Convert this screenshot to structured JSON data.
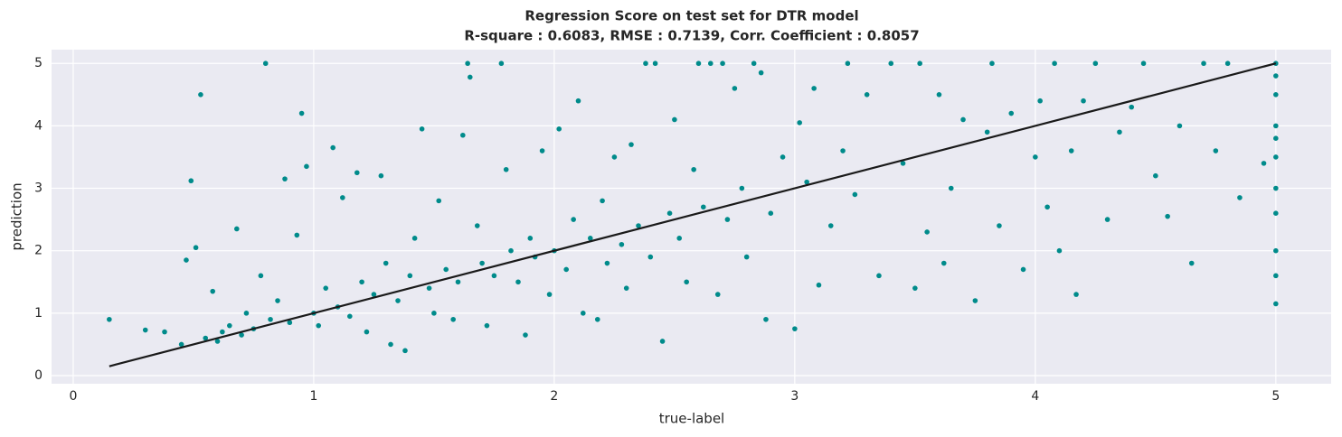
{
  "chart_data": {
    "type": "scatter",
    "title": "Regression Score on test set for DTR model",
    "subtitle": "R-square : 0.6083,   RMSE : 0.7139,   Corr. Coefficient : 0.8057",
    "xlabel": "true-label",
    "ylabel": "prediction",
    "xlim": [
      -0.09,
      5.23
    ],
    "ylim": [
      -0.13,
      5.22
    ],
    "xticks": [
      0,
      1,
      2,
      3,
      4,
      5
    ],
    "yticks": [
      0,
      1,
      2,
      3,
      4,
      5
    ],
    "grid": true,
    "points": {
      "color": "#008b8b",
      "x": [
        0.15,
        0.3,
        0.38,
        0.45,
        0.47,
        0.49,
        0.51,
        0.53,
        0.55,
        0.58,
        0.6,
        0.62,
        0.65,
        0.68,
        0.7,
        0.72,
        0.75,
        0.78,
        0.8,
        0.82,
        0.85,
        0.88,
        0.9,
        0.93,
        0.95,
        0.97,
        1.0,
        1.02,
        1.05,
        1.08,
        1.1,
        1.12,
        1.15,
        1.18,
        1.2,
        1.22,
        1.25,
        1.28,
        1.3,
        1.32,
        1.35,
        1.38,
        1.4,
        1.42,
        1.45,
        1.48,
        1.5,
        1.52,
        1.55,
        1.58,
        1.6,
        1.62,
        1.64,
        1.65,
        1.68,
        1.7,
        1.72,
        1.75,
        1.78,
        1.8,
        1.82,
        1.85,
        1.88,
        1.9,
        1.92,
        1.95,
        1.98,
        2.0,
        2.02,
        2.05,
        2.08,
        2.1,
        2.12,
        2.15,
        2.18,
        2.2,
        2.22,
        2.25,
        2.28,
        2.3,
        2.32,
        2.35,
        2.38,
        2.4,
        2.42,
        2.45,
        2.48,
        2.5,
        2.52,
        2.55,
        2.58,
        2.6,
        2.62,
        2.65,
        2.68,
        2.7,
        2.72,
        2.75,
        2.78,
        2.8,
        2.83,
        2.86,
        2.88,
        2.9,
        2.95,
        3.0,
        3.02,
        3.05,
        3.08,
        3.1,
        3.15,
        3.2,
        3.22,
        3.25,
        3.3,
        3.35,
        3.4,
        3.45,
        3.5,
        3.52,
        3.55,
        3.6,
        3.62,
        3.65,
        3.7,
        3.75,
        3.8,
        3.82,
        3.85,
        3.9,
        3.95,
        4.0,
        4.02,
        4.05,
        4.08,
        4.1,
        4.15,
        4.17,
        4.2,
        4.25,
        4.3,
        4.35,
        4.4,
        4.45,
        4.5,
        4.55,
        4.6,
        4.65,
        4.7,
        4.75,
        4.8,
        4.85,
        4.95,
        5.0,
        5.0,
        5.0,
        5.0,
        5.0,
        5.0,
        5.0,
        5.0,
        5.0,
        5.0,
        5.0
      ],
      "y": [
        0.9,
        0.73,
        0.7,
        0.5,
        1.85,
        3.12,
        2.05,
        4.5,
        0.6,
        1.35,
        0.55,
        0.7,
        0.8,
        2.35,
        0.65,
        1.0,
        0.75,
        1.6,
        5.0,
        0.9,
        1.2,
        3.15,
        0.85,
        2.25,
        4.2,
        3.35,
        1.0,
        0.8,
        1.4,
        3.65,
        1.1,
        2.85,
        0.95,
        3.25,
        1.5,
        0.7,
        1.3,
        3.2,
        1.8,
        0.5,
        1.2,
        0.4,
        1.6,
        2.2,
        3.95,
        1.4,
        1.0,
        2.8,
        1.7,
        0.9,
        1.5,
        3.85,
        5.0,
        4.78,
        2.4,
        1.8,
        0.8,
        1.6,
        5.0,
        3.3,
        2.0,
        1.5,
        0.65,
        2.2,
        1.9,
        3.6,
        1.3,
        2.0,
        3.95,
        1.7,
        2.5,
        4.4,
        1.0,
        2.2,
        0.9,
        2.8,
        1.8,
        3.5,
        2.1,
        1.4,
        3.7,
        2.4,
        5.0,
        1.9,
        5.0,
        0.55,
        2.6,
        4.1,
        2.2,
        1.5,
        3.3,
        5.0,
        2.7,
        5.0,
        1.3,
        5.0,
        2.5,
        4.6,
        3.0,
        1.9,
        5.0,
        4.85,
        0.9,
        2.6,
        3.5,
        0.75,
        4.05,
        3.1,
        4.6,
        1.45,
        2.4,
        3.6,
        5.0,
        2.9,
        4.5,
        1.6,
        5.0,
        3.4,
        1.4,
        5.0,
        2.3,
        4.5,
        1.8,
        3.0,
        4.1,
        1.2,
        3.9,
        5.0,
        2.4,
        4.2,
        1.7,
        3.5,
        4.4,
        2.7,
        5.0,
        2.0,
        3.6,
        1.3,
        4.4,
        5.0,
        2.5,
        3.9,
        4.3,
        5.0,
        3.2,
        2.55,
        4.0,
        1.8,
        5.0,
        3.6,
        5.0,
        2.85,
        3.4,
        5.0,
        4.5,
        4.0,
        3.5,
        3.0,
        2.6,
        2.0,
        1.6,
        1.15,
        4.8,
        3.8
      ]
    },
    "fit_line": {
      "color": "#1a1a1a",
      "x": [
        0.15,
        5.0
      ],
      "y": [
        0.15,
        5.0
      ]
    }
  }
}
